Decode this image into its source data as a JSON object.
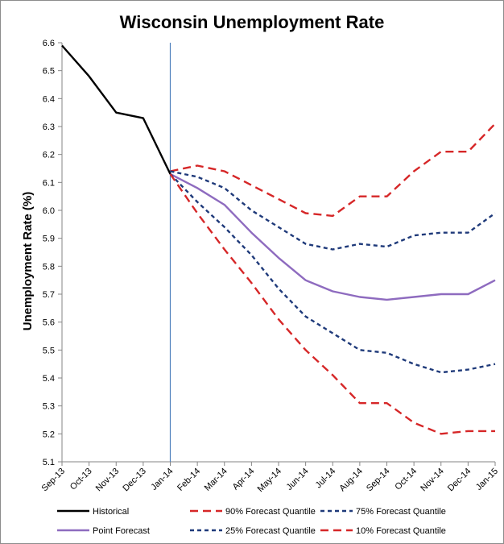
{
  "chart_data": {
    "type": "line",
    "title": "Wisconsin Unemployment Rate",
    "xlabel": "",
    "ylabel": "Unemployment Rate (%)",
    "ylim": [
      5.1,
      6.6
    ],
    "yticks": [
      "6.6",
      "6.5",
      "6.4",
      "6.3",
      "6.2",
      "6.1",
      "6.0",
      "5.9",
      "5.8",
      "5.7",
      "5.6",
      "5.5",
      "5.4",
      "5.3",
      "5.2",
      "5.1"
    ],
    "categories": [
      "Sep-13",
      "Oct-13",
      "Nov-13",
      "Dec-13",
      "Jan-14",
      "Feb-14",
      "Mar-14",
      "Apr-14",
      "May-14",
      "Jun-14",
      "Jul-14",
      "Aug-14",
      "Sep-14",
      "Oct-14",
      "Nov-14",
      "Dec-14",
      "Jan-15"
    ],
    "grid": false,
    "legend_position": "bottom",
    "vertical_marker": "Jan-14",
    "series": [
      {
        "name": "Historical",
        "color": "#000000",
        "style": "solid",
        "values": [
          6.59,
          6.48,
          6.35,
          6.33,
          6.13,
          null,
          null,
          null,
          null,
          null,
          null,
          null,
          null,
          null,
          null,
          null,
          null
        ]
      },
      {
        "name": "90% Forecast Quantile",
        "color": "#d62728",
        "style": "long-dash",
        "values": [
          null,
          null,
          null,
          null,
          6.14,
          6.16,
          6.14,
          6.09,
          6.04,
          5.99,
          5.98,
          6.05,
          6.05,
          6.14,
          6.21,
          6.21,
          6.31
        ]
      },
      {
        "name": "75% Forecast Quantile",
        "color": "#1f3a7a",
        "style": "short-dash",
        "values": [
          null,
          null,
          null,
          null,
          6.14,
          6.12,
          6.08,
          6.0,
          5.94,
          5.88,
          5.86,
          5.88,
          5.87,
          5.91,
          5.92,
          5.92,
          5.99
        ]
      },
      {
        "name": "Point Forecast",
        "color": "#8e6bbf",
        "style": "solid",
        "values": [
          null,
          null,
          null,
          null,
          6.13,
          6.08,
          6.02,
          5.92,
          5.83,
          5.75,
          5.71,
          5.69,
          5.68,
          5.69,
          5.7,
          5.7,
          5.75
        ]
      },
      {
        "name": "25% Forecast Quantile",
        "color": "#1f3a7a",
        "style": "short-dash",
        "values": [
          null,
          null,
          null,
          null,
          6.13,
          6.03,
          5.94,
          5.84,
          5.72,
          5.62,
          5.56,
          5.5,
          5.49,
          5.45,
          5.42,
          5.43,
          5.45
        ]
      },
      {
        "name": "10% Forecast Quantile",
        "color": "#d62728",
        "style": "long-dash",
        "values": [
          null,
          null,
          null,
          null,
          6.13,
          5.99,
          5.86,
          5.74,
          5.61,
          5.5,
          5.41,
          5.31,
          5.31,
          5.24,
          5.2,
          5.21,
          5.21
        ]
      }
    ]
  }
}
